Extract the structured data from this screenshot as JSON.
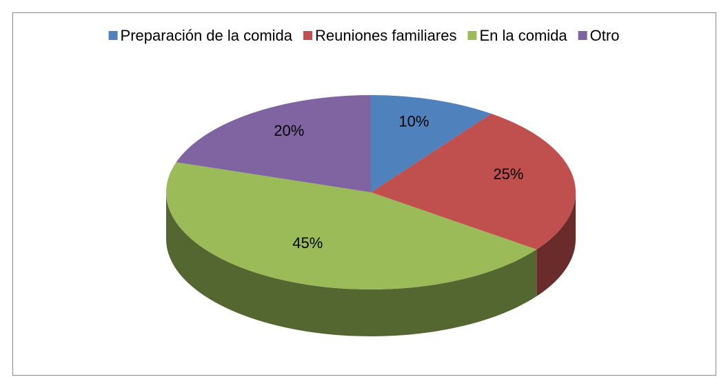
{
  "chart_data": {
    "type": "pie",
    "categories": [
      "Preparación de la comida",
      "Reuniones familiares",
      "En la comida",
      "Otro"
    ],
    "values": [
      10,
      25,
      45,
      20
    ],
    "value_labels": [
      "10%",
      "25%",
      "45%",
      "20%"
    ],
    "colors": [
      "#4f81bd",
      "#c0504d",
      "#9bbb59",
      "#8064a2"
    ],
    "legend": "top"
  }
}
